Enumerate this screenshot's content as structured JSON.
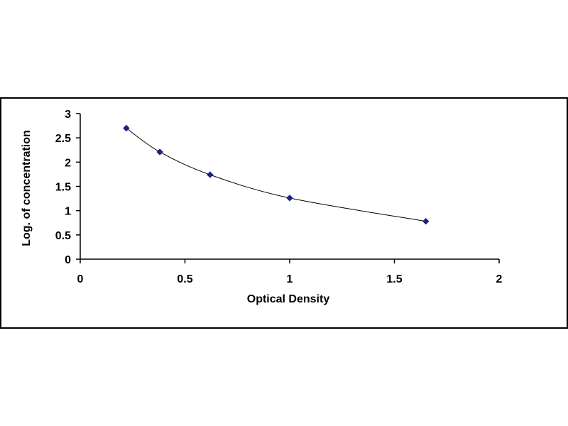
{
  "chart_data": {
    "type": "scatter",
    "title": "",
    "xlabel": "Optical Density",
    "ylabel": "Log. of concentration",
    "xlim": [
      0,
      2
    ],
    "ylim": [
      0,
      3
    ],
    "xticks": [
      0,
      0.5,
      1,
      1.5,
      2
    ],
    "xtick_labels": [
      "0",
      "0.5",
      "1",
      "1.5",
      "2"
    ],
    "yticks": [
      0,
      0.5,
      1,
      1.5,
      2,
      2.5,
      3
    ],
    "ytick_labels": [
      "0",
      "0.5",
      "1",
      "1.5",
      "2",
      "2.5",
      "3"
    ],
    "grid": false,
    "legend": "none",
    "series": [
      {
        "x": [
          0.22,
          0.38,
          0.62,
          1.0,
          1.65
        ],
        "y": [
          2.7,
          2.21,
          1.74,
          1.26,
          0.78
        ],
        "marker": "diamond",
        "color": "#1a237e",
        "trendline": true,
        "trend_color": "#000000"
      }
    ]
  }
}
